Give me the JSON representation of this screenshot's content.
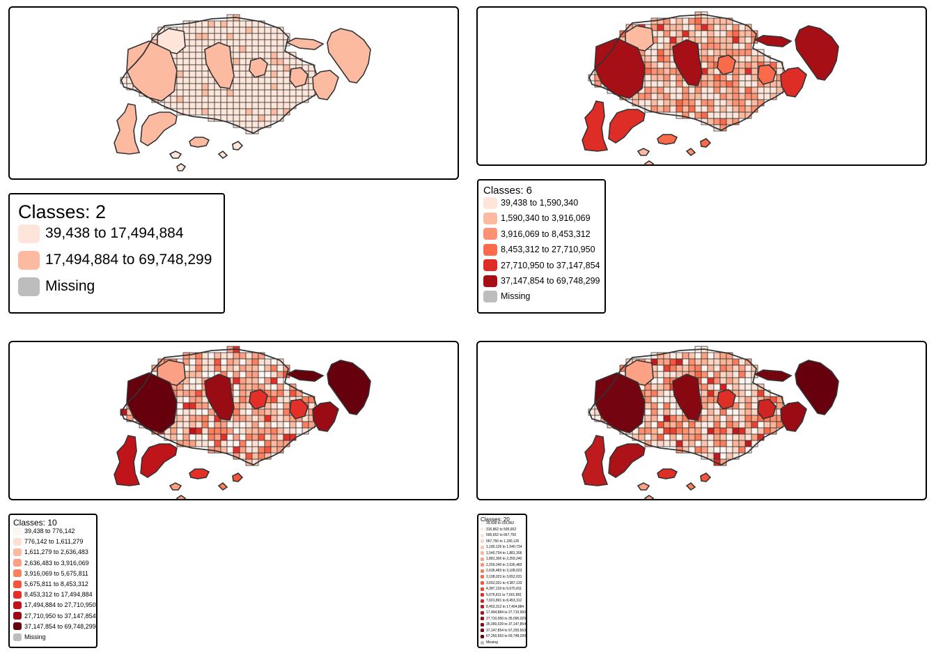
{
  "missing_color": "#bdbdbd",
  "border_color": "#333333",
  "panels": [
    {
      "id": "classes-2",
      "title": "Classes: 2",
      "classes": [
        {
          "label": "39,438 to 17,494,884",
          "color": "#fee5d9"
        },
        {
          "label": "17,494,884 to 69,748,299",
          "color": "#fcbba1"
        }
      ],
      "missing_label": "Missing"
    },
    {
      "id": "classes-6",
      "title": "Classes: 6",
      "classes": [
        {
          "label": "39,438 to 1,590,340",
          "color": "#fee5d9"
        },
        {
          "label": "1,590,340 to 3,916,069",
          "color": "#fcbba1"
        },
        {
          "label": "3,916,069 to 8,453,312",
          "color": "#fc9272"
        },
        {
          "label": "8,453,312 to 27,710,950",
          "color": "#fb6a4a"
        },
        {
          "label": "27,710,950 to 37,147,854",
          "color": "#de2d26"
        },
        {
          "label": "37,147,854 to 69,748,299",
          "color": "#a50f15"
        }
      ],
      "missing_label": "Missing"
    },
    {
      "id": "classes-10",
      "title": "Classes: 10",
      "classes": [
        {
          "label": "39,438 to 776,142",
          "color": "#fff5f0"
        },
        {
          "label": "776,142 to 1,611,279",
          "color": "#fee0d2"
        },
        {
          "label": "1,611,279 to 2,636,483",
          "color": "#fcbba1"
        },
        {
          "label": "2,636,483 to 3,916,069",
          "color": "#fc9f84"
        },
        {
          "label": "3,916,069 to 5,675,811",
          "color": "#fc7f5e"
        },
        {
          "label": "5,675,811 to 8,453,312",
          "color": "#f5553c"
        },
        {
          "label": "8,453,312 to 17,494,884",
          "color": "#e32f27"
        },
        {
          "label": "17,494,884 to 27,710,950",
          "color": "#c0141b"
        },
        {
          "label": "27,710,950 to 37,147,854",
          "color": "#9a0c14"
        },
        {
          "label": "37,147,854 to 69,748,299",
          "color": "#67000d"
        }
      ],
      "missing_label": "Missing"
    },
    {
      "id": "classes-20",
      "title": "Classes: 20",
      "classes": [
        {
          "label": "39,438 to 316,862",
          "color": "#fff5f0"
        },
        {
          "label": "316,862 to 595,652",
          "color": "#ffede5"
        },
        {
          "label": "595,652 to 667,750",
          "color": "#fee5d9"
        },
        {
          "label": "667,750 to 1,180,126",
          "color": "#fdd5c4"
        },
        {
          "label": "1,180,126 to 1,540,734",
          "color": "#fcc5ae"
        },
        {
          "label": "1,540,734 to 1,881,306",
          "color": "#fcb398"
        },
        {
          "label": "1,881,306 to 2,259,240",
          "color": "#fca183"
        },
        {
          "label": "2,259,240 to 2,636,483",
          "color": "#fc8f6f"
        },
        {
          "label": "2,636,483 to 3,108,023",
          "color": "#fb7d5b"
        },
        {
          "label": "3,108,023 to 3,652,031",
          "color": "#fa6949"
        },
        {
          "label": "3,652,031 to 4,387,133",
          "color": "#f4553c"
        },
        {
          "label": "4,387,133 to 5,675,811",
          "color": "#eb4230"
        },
        {
          "label": "5,675,811 to 7,601,891",
          "color": "#de2f26"
        },
        {
          "label": "7,601,891 to 8,453,312",
          "color": "#cf2422"
        },
        {
          "label": "8,453,312 to 17,494,884",
          "color": "#bf1a1d"
        },
        {
          "label": "17,494,884 to 27,710,950",
          "color": "#ae1219"
        },
        {
          "label": "27,710,950 to 35,090,029",
          "color": "#9a0c14"
        },
        {
          "label": "35,090,029 to 37,147,854",
          "color": "#870811"
        },
        {
          "label": "37,147,854 to 67,250,563",
          "color": "#74040f"
        },
        {
          "label": "67,250,563 to 69,748,299",
          "color": "#67000d"
        }
      ],
      "missing_label": "Missing"
    }
  ]
}
